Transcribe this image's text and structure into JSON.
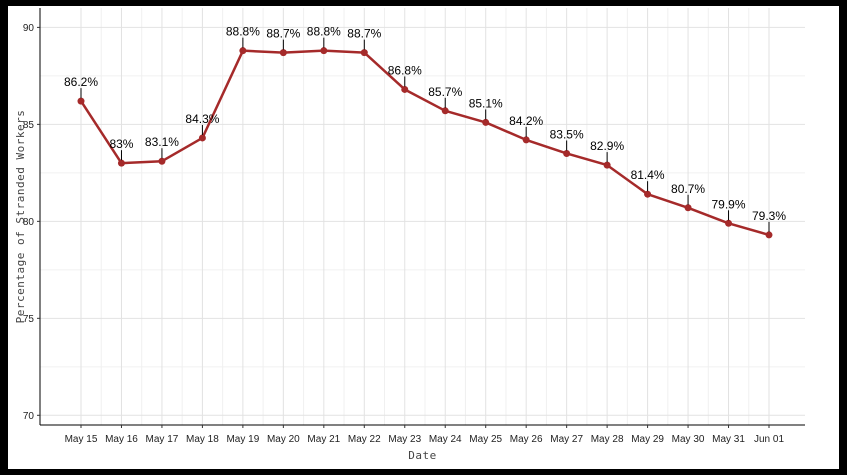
{
  "chart_data": {
    "type": "line",
    "title": "",
    "xlabel": "Date",
    "ylabel": "Percentage of Stranded Workers",
    "ylim": [
      69.5,
      91
    ],
    "yticks": [
      70,
      75,
      80,
      85,
      90
    ],
    "grid": true,
    "line_color": "#A52A2A",
    "categories": [
      "May 15",
      "May 16",
      "May 17",
      "May 18",
      "May 19",
      "May 20",
      "May 21",
      "May 22",
      "May 23",
      "May 24",
      "May 25",
      "May 26",
      "May 27",
      "May 28",
      "May 29",
      "May 30",
      "May 31",
      "Jun 01"
    ],
    "values": [
      86.2,
      83.0,
      83.1,
      84.3,
      88.8,
      88.7,
      88.8,
      88.7,
      86.8,
      85.7,
      85.1,
      84.2,
      83.5,
      82.9,
      81.4,
      80.7,
      79.9,
      79.3
    ],
    "data_labels": [
      "86.2%",
      "83%",
      "83.1%",
      "84.3%",
      "88.8%",
      "88.7%",
      "88.8%",
      "88.7%",
      "86.8%",
      "85.7%",
      "85.1%",
      "84.2%",
      "83.5%",
      "82.9%",
      "81.4%",
      "80.7%",
      "79.9%",
      "79.3%"
    ]
  }
}
